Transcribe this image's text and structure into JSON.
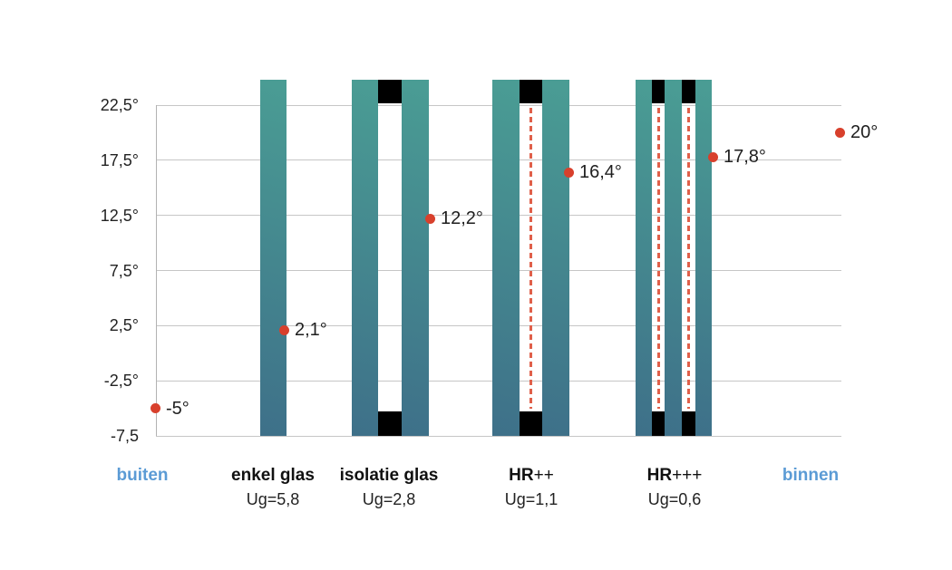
{
  "chart_data": {
    "type": "scatter",
    "title": "",
    "description_visible_text_only": true,
    "yaxis": {
      "tick_labels": [
        "22,5°",
        "17,5°",
        "12,5°",
        "7,5°",
        "2,5°",
        "-2,5°",
        "-7,5"
      ],
      "tick_values": [
        22.5,
        17.5,
        12.5,
        7.5,
        2.5,
        -2.5,
        -7.5
      ],
      "min": -7.5,
      "max": 22.5,
      "grid": true,
      "legend": "none"
    },
    "points": [
      {
        "category": "buiten",
        "value": -5,
        "label": "-5°"
      },
      {
        "category": "enkel glas",
        "value": 2.1,
        "label": "2,1°"
      },
      {
        "category": "isolatie glas",
        "value": 12.2,
        "label": "12,2°"
      },
      {
        "category": "HR++",
        "value": 16.4,
        "label": "16,4°"
      },
      {
        "category": "HR+++",
        "value": 17.8,
        "label": "17,8°"
      },
      {
        "category": "binnen",
        "value": 20,
        "label": "20°"
      }
    ],
    "categories": [
      {
        "name": "buiten",
        "suffix": "",
        "sub": "",
        "panes": 0,
        "coating_lines": 0,
        "is_location": true
      },
      {
        "name": "enkel glas",
        "suffix": "",
        "sub": "Ug=5,8",
        "panes": 1,
        "coating_lines": 0,
        "is_location": false
      },
      {
        "name": "isolatie glas",
        "suffix": "",
        "sub": "Ug=2,8",
        "panes": 2,
        "coating_lines": 0,
        "is_location": false
      },
      {
        "name": "HR",
        "suffix": "++",
        "sub": "Ug=1,1",
        "panes": 2,
        "coating_lines": 1,
        "is_location": false
      },
      {
        "name": "HR",
        "suffix": "+++",
        "sub": "Ug=0,6",
        "panes": 3,
        "coating_lines": 2,
        "is_location": false
      },
      {
        "name": "binnen",
        "suffix": "",
        "sub": "",
        "panes": 0,
        "coating_lines": 0,
        "is_location": true
      }
    ],
    "colors": {
      "dot": "#d8402c",
      "coating_dashed_line": "#e0604a",
      "pane_gradient_top": "#4a9d94",
      "pane_gradient_bottom": "#3e7089",
      "spacer_block": "#000000",
      "gridline": "#c6c6c6",
      "axis_line": "#b2b2b2",
      "value_text": "#1e1e1e",
      "location_text": "#5b9bd5",
      "category_text": "#111111"
    }
  }
}
